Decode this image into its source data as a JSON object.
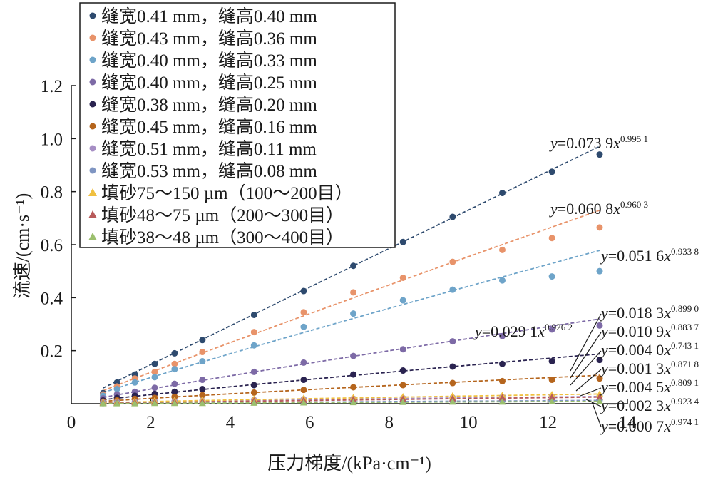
{
  "chart_data": {
    "type": "scatter",
    "xlabel": "压力梯度/(kPa·cm⁻¹)",
    "ylabel": "流速/(cm·s⁻¹)",
    "xlim": [
      0,
      14
    ],
    "ylim": [
      0,
      1.2
    ],
    "x_ticks": [
      "0",
      "2",
      "4",
      "6",
      "8",
      "10",
      "12",
      "14"
    ],
    "y_ticks": [
      "0.2",
      "0.4",
      "0.6",
      "0.8",
      "1.0",
      "1.2"
    ],
    "grid": false,
    "legend_position": "top-left",
    "x": [
      0.8,
      1.15,
      1.6,
      2.1,
      2.6,
      3.3,
      4.6,
      5.85,
      7.1,
      8.35,
      9.6,
      10.85,
      12.1,
      13.3
    ],
    "series": [
      {
        "name": "缝宽0.41 mm，缝高0.40 mm",
        "marker": "circle",
        "color": "#2e4a6e",
        "values": [
          0.04,
          0.08,
          0.11,
          0.15,
          0.19,
          0.24,
          0.335,
          0.425,
          0.52,
          0.61,
          0.705,
          0.795,
          0.875,
          0.94
        ],
        "fit": {
          "a": 0.0739,
          "b": 0.9951
        },
        "fit_label": {
          "prefix": "y",
          "text": "=0.073 9",
          "x": "x",
          "exp": "0.995 1"
        }
      },
      {
        "name": "缝宽0.43 mm，缝高0.36 mm",
        "marker": "circle",
        "color": "#e8936a",
        "values": [
          0.035,
          0.065,
          0.095,
          0.12,
          0.15,
          0.195,
          0.27,
          0.345,
          0.42,
          0.475,
          0.535,
          0.58,
          0.625,
          0.665
        ],
        "fit": {
          "a": 0.0608,
          "b": 0.9603
        },
        "fit_label": {
          "prefix": "y",
          "text": "=0.060 8",
          "x": "x",
          "exp": "0.960 3"
        }
      },
      {
        "name": "缝宽0.40 mm，缝高0.33 mm",
        "marker": "circle",
        "color": "#6ea4c9",
        "values": [
          0.03,
          0.055,
          0.08,
          0.1,
          0.13,
          0.16,
          0.22,
          0.29,
          0.34,
          0.39,
          0.43,
          0.465,
          0.48,
          0.5
        ],
        "fit": {
          "a": 0.0516,
          "b": 0.9338
        },
        "fit_label": {
          "prefix": "y",
          "text": "=0.051 6",
          "x": "x",
          "exp": "0.933 8"
        }
      },
      {
        "name": "缝宽0.40 mm，缝高0.25 mm",
        "marker": "circle",
        "color": "#7d6aa6",
        "values": [
          0.02,
          0.035,
          0.045,
          0.06,
          0.075,
          0.09,
          0.12,
          0.155,
          0.18,
          0.205,
          0.235,
          0.255,
          0.28,
          0.295
        ],
        "fit": {
          "a": 0.0291,
          "b": 0.9262
        },
        "fit_label": {
          "prefix": "y",
          "text": "=0.029 1",
          "x": "x",
          "exp": "0.926 2"
        }
      },
      {
        "name": "缝宽0.38 mm，缝高0.20 mm",
        "marker": "circle",
        "color": "#2a2350",
        "values": [
          0.012,
          0.022,
          0.03,
          0.037,
          0.045,
          0.055,
          0.07,
          0.09,
          0.11,
          0.125,
          0.14,
          0.15,
          0.16,
          0.165
        ],
        "fit": {
          "a": 0.0183,
          "b": 0.899
        },
        "fit_label": {
          "prefix": "y",
          "text": "=0.018 3",
          "x": "x",
          "exp": "0.899 0"
        }
      },
      {
        "name": "缝宽0.45 mm，缝高0.16 mm",
        "marker": "circle",
        "color": "#b5651d",
        "values": [
          0.008,
          0.013,
          0.018,
          0.022,
          0.026,
          0.032,
          0.042,
          0.052,
          0.062,
          0.07,
          0.078,
          0.085,
          0.09,
          0.095
        ],
        "fit": {
          "a": 0.0109,
          "b": 0.8837
        },
        "fit_label": {
          "prefix": "y",
          "text": "=0.010 9",
          "x": "x",
          "exp": "0.883 7"
        }
      },
      {
        "name": "缝宽0.51 mm，缝高0.11 mm",
        "marker": "circle",
        "color": "#a68ec4",
        "values": [
          0.004,
          0.006,
          0.007,
          0.008,
          0.009,
          0.011,
          0.014,
          0.017,
          0.019,
          0.021,
          0.023,
          0.025,
          0.027,
          0.028
        ],
        "fit": {
          "a": 0.004,
          "b": 0.7431
        },
        "fit_label": {
          "prefix": "y",
          "text": "=0.004 0",
          "x": "x",
          "exp": "0.743 1"
        }
      },
      {
        "name": "缝宽0.53 mm，缝高0.08 mm",
        "marker": "circle",
        "color": "#7f95c2",
        "values": [
          0.002,
          0.003,
          0.003,
          0.004,
          0.004,
          0.005,
          0.006,
          0.006,
          0.008,
          0.009,
          0.01,
          0.011,
          0.012,
          0.013
        ],
        "fit": {
          "a": 0.0013,
          "b": 0.8718
        },
        "fit_label": {
          "prefix": "y",
          "text": "=0.001 3",
          "x": "x",
          "exp": "0.871 8"
        }
      },
      {
        "name": "填砂75～150 µm（100～200目）",
        "marker": "triangle",
        "color": "#f0c040",
        "values": [
          0.006,
          0.008,
          0.01,
          0.012,
          0.013,
          0.015,
          0.018,
          0.021,
          0.024,
          0.027,
          0.03,
          0.032,
          0.035,
          0.037
        ],
        "fit": {
          "a": 0.0045,
          "b": 0.8091
        },
        "fit_label": {
          "prefix": "y",
          "text": "=0.004 5",
          "x": "x",
          "exp": "0.809 1"
        }
      },
      {
        "name": "填砂48～75 µm（200～300目）",
        "marker": "triangle",
        "color": "#b85a5a",
        "values": [
          0.003,
          0.004,
          0.005,
          0.006,
          0.007,
          0.008,
          0.011,
          0.013,
          0.016,
          0.018,
          0.02,
          0.023,
          0.025,
          0.026
        ],
        "fit": {
          "a": 0.0023,
          "b": 0.9234
        },
        "fit_label": {
          "prefix": "y",
          "text": "=0.002 3",
          "x": "x",
          "exp": "0.923 4"
        }
      },
      {
        "name": "填砂38～48 µm（300～400目）",
        "marker": "triangle",
        "color": "#9bbf6e",
        "values": [
          0.001,
          0.001,
          0.001,
          0.002,
          0.002,
          0.002,
          0.003,
          0.004,
          0.005,
          0.006,
          0.007,
          0.007,
          0.008,
          0.009
        ],
        "fit": {
          "a": 0.0007,
          "b": 0.9741
        },
        "fit_label": {
          "prefix": "y",
          "text": "=0.000 7",
          "x": "x",
          "exp": "0.974 1"
        }
      }
    ]
  }
}
